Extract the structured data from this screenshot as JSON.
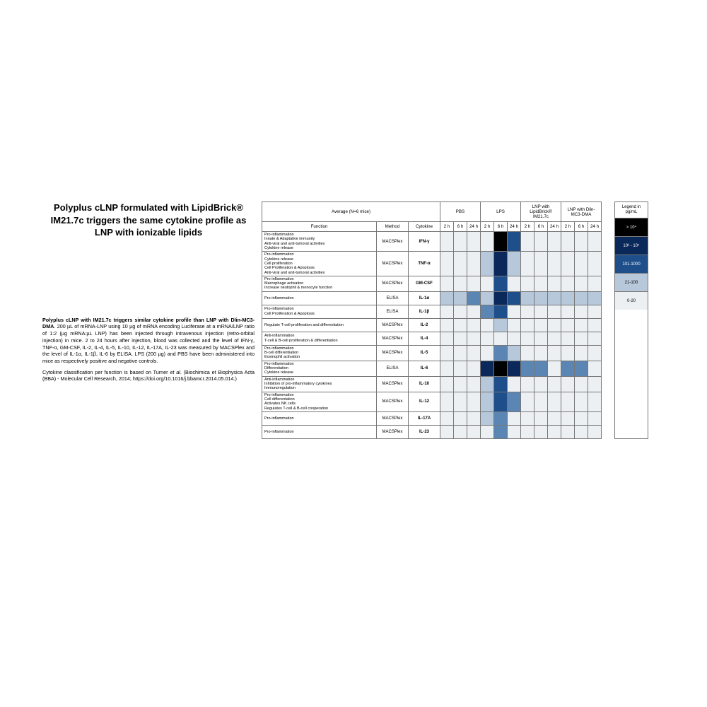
{
  "title": "Polyplus cLNP formulated with LipidBrick® IM21.7c triggers the same cytokine profile as LNP with ionizable lipids",
  "paragraphs": [
    "<b>Polyplus cLNP with IM21.7c triggers similar cytokine profile than LNP with Dlin-MC3-DMA</b>. 200 µL of mRNA-LNP using 10 µg of mRNA encoding Luciferase at a mRNA/LNP ratio of 1:2 (µg mRNA:µL LNP) has been injected through intravenous injection (retro-orbital injection) in mice. 2 to 24 hours after injection, blood was collected and the level of IFN-γ, TNF-α, GM-CSF, IL-2, IL-4, IL-5, IL-10, IL-12, IL-17A, IL-23 was measured by MACSPlex and the level of IL-1α, IL-1β, IL-6 by ELISA. LPS (200 µg) and PBS have been administered into mice as respectively positive and negative controls.",
    "Cytokine classification per function is based on Turner <i>et al</i>. (Biochimica et Biophysica Acta (BBA) - Molecular Cell Research, 2014; https://doi.org/10.1016/j.bbamcr.2014.05.014.)"
  ],
  "headers": {
    "main": "Average (N=6 mice)",
    "groups": [
      "PBS",
      "LPS",
      "LNP with LipidBrick® IM21.7c",
      "LNP with Dlin-MC3-DMA"
    ],
    "sub": [
      "Function",
      "Method",
      "Cytokine"
    ],
    "times": [
      "2 h",
      "6 h",
      "24 h"
    ]
  },
  "palette": {
    "c0": "#ecf0f3",
    "c1": "#b6c8da",
    "c2": "#5b86b4",
    "c3": "#1f4f8b",
    "c4": "#0a285a",
    "c5": "#000000"
  },
  "legend": {
    "title": "Legend in pg/mL",
    "items": [
      {
        "label": "> 10⁴",
        "color": "#000000",
        "text": "#ffffff"
      },
      {
        "label": "10³ - 10⁴",
        "color": "#0a285a",
        "text": "#ffffff"
      },
      {
        "label": "101-1000",
        "color": "#1f4f8b",
        "text": "#ffffff"
      },
      {
        "label": "21-100",
        "color": "#b6c8da",
        "text": "#000000"
      },
      {
        "label": "0-20",
        "color": "#ecf0f3",
        "text": "#000000"
      }
    ]
  },
  "rows": [
    {
      "func": "Pro-inflammation<br>Innate & Adaptative immunity<br>Anti-viral and anti-tumoral activities<br>Cytokine release",
      "method": "MACSPlex",
      "cyto": "IFN-γ",
      "cells": [
        0,
        0,
        0,
        0,
        5,
        3,
        0,
        0,
        0,
        0,
        0,
        0
      ]
    },
    {
      "func": "Pro-inflammation<br>Cytokine release<br>Cell proliferation<br>Cell Proliferation & Apoptosis<br>Anti-viral and anti-tumoral activities",
      "method": "MACSPlex",
      "cyto": "TNF-α",
      "cells": [
        0,
        0,
        0,
        1,
        4,
        1,
        0,
        0,
        0,
        0,
        0,
        0
      ]
    },
    {
      "func": "Pro-inflammation<br>Macrophage activation<br>Increase neutophil & monocyte function",
      "method": "MACSPlex",
      "cyto": "GM-CSF",
      "cells": [
        0,
        0,
        0,
        0,
        3,
        0,
        0,
        0,
        0,
        0,
        0,
        0
      ]
    },
    {
      "func": "Pro-inflammation",
      "method": "ELISA",
      "cyto": "IL-1α",
      "cells": [
        1,
        1,
        2,
        1,
        4,
        3,
        1,
        1,
        1,
        1,
        1,
        1
      ]
    },
    {
      "func": "Pro-inflammation<br>Cell Proliferation & Apoptosis",
      "method": "ELISA",
      "cyto": "IL-1β",
      "cells": [
        0,
        0,
        0,
        2,
        3,
        0,
        0,
        0,
        0,
        0,
        0,
        0
      ]
    },
    {
      "func": "Regulate T-cell proliferation and differentiation",
      "method": "MACSPlex",
      "cyto": "IL-2",
      "cells": [
        0,
        0,
        0,
        0,
        1,
        0,
        0,
        0,
        0,
        0,
        0,
        0
      ]
    },
    {
      "func": "Anti-inflammation<br>T-cell & B-cell proliferation & differentiation",
      "method": "MACSPlex",
      "cyto": "IL-4",
      "cells": [
        0,
        0,
        0,
        0,
        0,
        0,
        0,
        0,
        0,
        0,
        0,
        0
      ]
    },
    {
      "func": "Pro-inflammation<br>B-cell differentiation<br>Eosinophil activation",
      "method": "MACSPlex",
      "cyto": "IL-5",
      "cells": [
        0,
        0,
        0,
        0,
        2,
        1,
        0,
        0,
        0,
        0,
        0,
        0
      ]
    },
    {
      "func": "Pro-inflammation<br>Differentiation<br>Cytokine release",
      "method": "ELISA",
      "cyto": "IL-6",
      "cells": [
        0,
        0,
        0,
        4,
        5,
        4,
        2,
        2,
        0,
        2,
        2,
        0
      ]
    },
    {
      "func": "Anti-inflammation<br>Inhibition of pro-inflammatory cytokines<br>Immunoregulation",
      "method": "MACSPlex",
      "cyto": "IL-10",
      "cells": [
        0,
        0,
        0,
        1,
        3,
        0,
        0,
        0,
        0,
        0,
        0,
        0
      ]
    },
    {
      "func": "Pro-inflammation<br>Cell differentation<br>Activates NK cells<br>Regulates T-cell & B-cell cooperation",
      "method": "MACSPlex",
      "cyto": "IL-12",
      "cells": [
        0,
        0,
        0,
        1,
        3,
        2,
        0,
        0,
        0,
        0,
        0,
        0
      ]
    },
    {
      "func": "Pro-inflammation",
      "method": "MACSPlex",
      "cyto": "IL-17A",
      "cells": [
        0,
        0,
        0,
        1,
        2,
        0,
        0,
        0,
        0,
        0,
        0,
        0
      ]
    },
    {
      "func": "Pro-inflammation",
      "method": "MACSPlex",
      "cyto": "IL-23",
      "cells": [
        0,
        0,
        0,
        0,
        2,
        0,
        0,
        0,
        0,
        0,
        0,
        0
      ]
    }
  ]
}
